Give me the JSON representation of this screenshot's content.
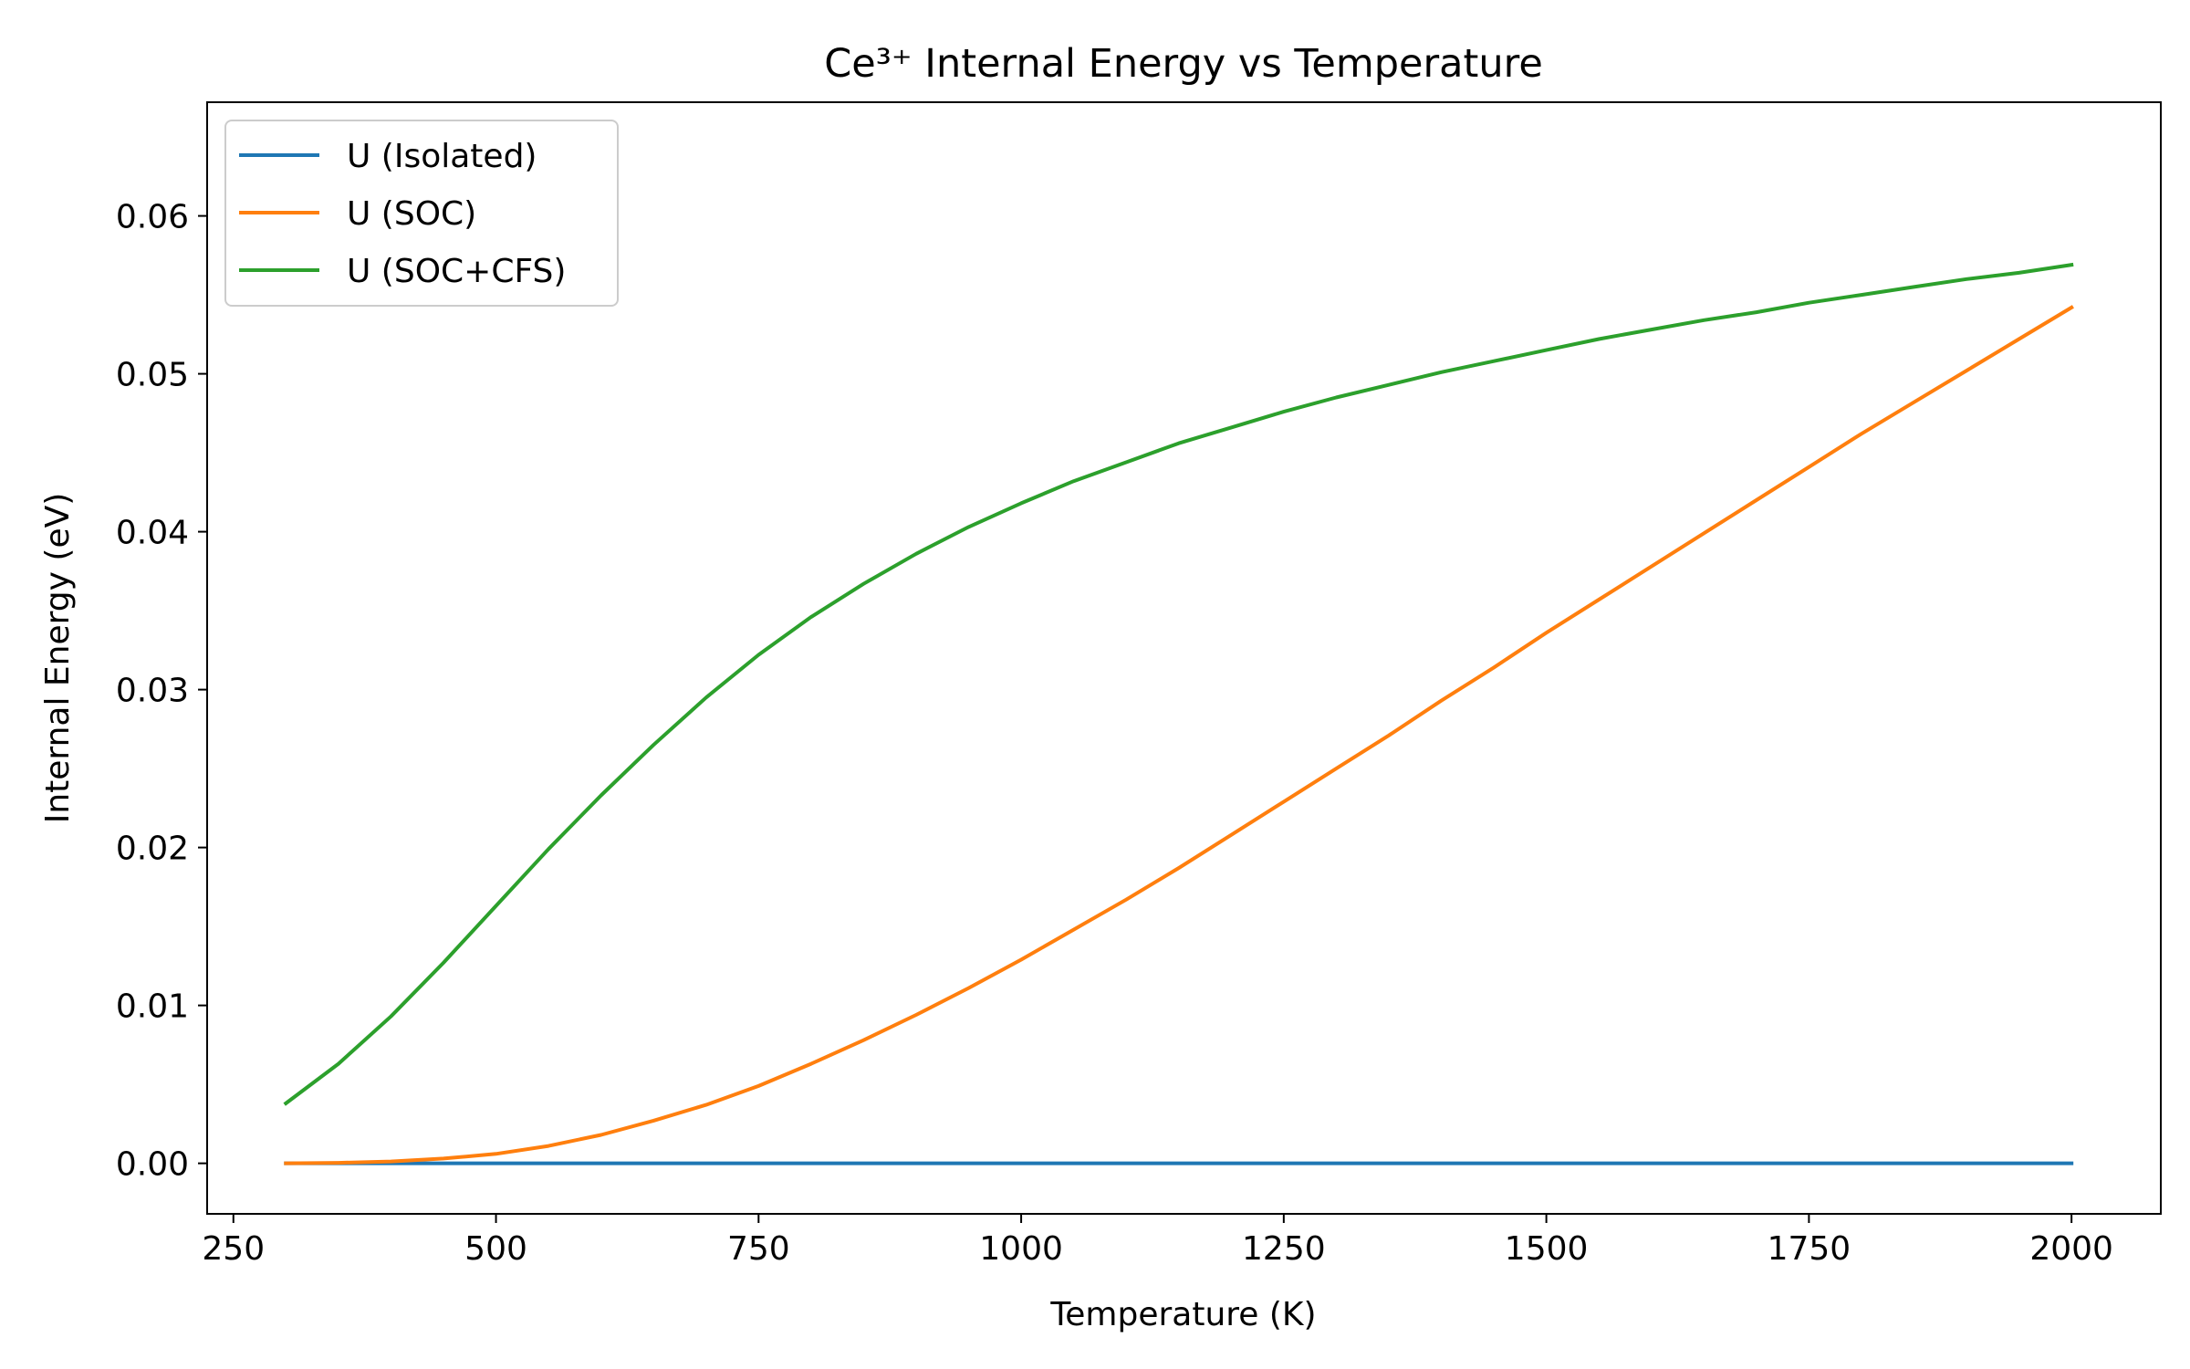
{
  "chart_data": {
    "type": "line",
    "title": "Ce³⁺ Internal Energy vs Temperature",
    "xlabel": "Temperature (K)",
    "ylabel": "Internal Energy (eV)",
    "xlim": [
      225,
      2085
    ],
    "ylim": [
      -0.0032,
      0.0672
    ],
    "xticks": [
      250,
      500,
      750,
      1000,
      1250,
      1500,
      1750,
      2000
    ],
    "xtick_labels": [
      "250",
      "500",
      "750",
      "1000",
      "1250",
      "1500",
      "1750",
      "2000"
    ],
    "yticks": [
      0.0,
      0.01,
      0.02,
      0.03,
      0.04,
      0.05,
      0.06
    ],
    "ytick_labels": [
      "0.00",
      "0.01",
      "0.02",
      "0.03",
      "0.04",
      "0.05",
      "0.06"
    ],
    "grid": false,
    "legend_position": "top-left",
    "x": [
      300,
      350,
      400,
      450,
      500,
      550,
      600,
      650,
      700,
      750,
      800,
      850,
      900,
      950,
      1000,
      1050,
      1100,
      1150,
      1200,
      1250,
      1300,
      1350,
      1400,
      1450,
      1500,
      1550,
      1600,
      1650,
      1700,
      1750,
      1800,
      1850,
      1900,
      1950,
      2000
    ],
    "series": [
      {
        "name": "U (Isolated)",
        "color": "#1f77b4",
        "values": [
          0,
          0,
          0,
          0,
          0,
          0,
          0,
          0,
          0,
          0,
          0,
          0,
          0,
          0,
          0,
          0,
          0,
          0,
          0,
          0,
          0,
          0,
          0,
          0,
          0,
          0,
          0,
          0,
          0,
          0,
          0,
          0,
          0,
          0,
          0
        ]
      },
      {
        "name": "U (SOC)",
        "color": "#ff7f0e",
        "values": [
          0.0,
          3e-05,
          0.00012,
          0.0003,
          0.0006,
          0.0011,
          0.0018,
          0.0027,
          0.0037,
          0.0049,
          0.0063,
          0.0078,
          0.0094,
          0.0111,
          0.0129,
          0.0148,
          0.0167,
          0.0187,
          0.0208,
          0.0229,
          0.025,
          0.0271,
          0.0293,
          0.0314,
          0.0336,
          0.0357,
          0.0378,
          0.0399,
          0.042,
          0.0441,
          0.0462,
          0.0482,
          0.0502,
          0.0522,
          0.0542
        ]
      },
      {
        "name": "U (SOC+CFS)",
        "color": "#2ca02c",
        "values": [
          0.0038,
          0.0063,
          0.0093,
          0.0127,
          0.0163,
          0.0199,
          0.0233,
          0.0265,
          0.0295,
          0.0322,
          0.0346,
          0.0367,
          0.0386,
          0.0403,
          0.0418,
          0.0432,
          0.0444,
          0.0456,
          0.0466,
          0.0476,
          0.0485,
          0.0493,
          0.0501,
          0.0508,
          0.0515,
          0.0522,
          0.0528,
          0.0534,
          0.0539,
          0.0545,
          0.055,
          0.0555,
          0.056,
          0.0564,
          0.0569
        ]
      }
    ]
  }
}
